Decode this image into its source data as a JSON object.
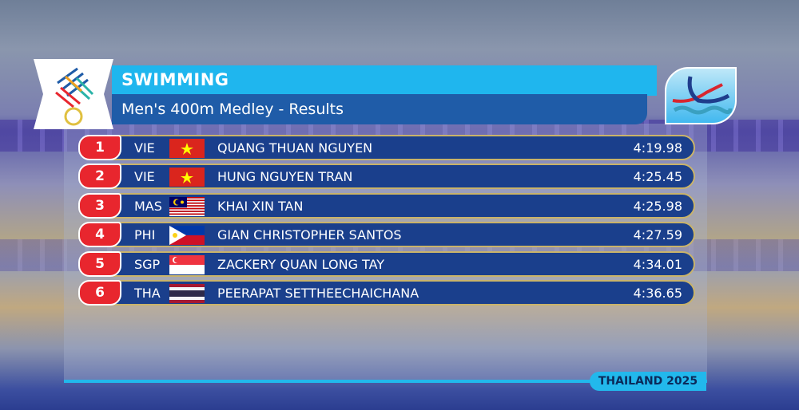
{
  "header": {
    "sport": "SWIMMING",
    "event": "Men's 400m Medley - Results"
  },
  "colors": {
    "header": "#1fb6ee",
    "row": "#1a3f8c",
    "rank_badge": "#e8262e"
  },
  "results": [
    {
      "rank": "1",
      "country": "VIE",
      "flag": "vietnam-flag",
      "name": "QUANG THUAN NGUYEN",
      "time": "4:19.98"
    },
    {
      "rank": "2",
      "country": "VIE",
      "flag": "vietnam-flag",
      "name": "HUNG NGUYEN TRAN",
      "time": "4:25.45"
    },
    {
      "rank": "3",
      "country": "MAS",
      "flag": "malaysia-flag",
      "name": "KHAI XIN TAN",
      "time": "4:25.98"
    },
    {
      "rank": "4",
      "country": "PHI",
      "flag": "philippines-flag",
      "name": "GIAN CHRISTOPHER SANTOS",
      "time": "4:27.59"
    },
    {
      "rank": "5",
      "country": "SGP",
      "flag": "singapore-flag",
      "name": "ZACKERY QUAN LONG TAY",
      "time": "4:34.01"
    },
    {
      "rank": "6",
      "country": "THA",
      "flag": "thailand-flag",
      "name": "PEERAPAT SETTHEECHAICHANA",
      "time": "4:36.65"
    }
  ],
  "footer": "THAILAND 2025"
}
